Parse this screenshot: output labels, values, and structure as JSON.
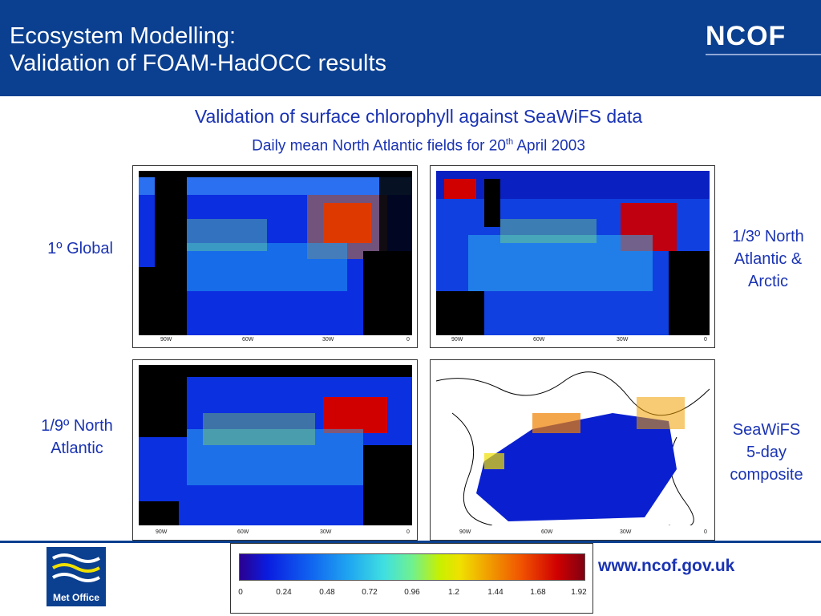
{
  "header": {
    "title_line1": "Ecosystem Modelling:",
    "title_line2": "Validation of FOAM-HadOCC results",
    "logo": "NCOF"
  },
  "subtitle": {
    "main": "Validation of surface chlorophyll against SeaWiFS data",
    "date_prefix": "Daily mean North Atlantic fields for 20",
    "date_sup": "th",
    "date_suffix": " April 2003"
  },
  "panels": [
    {
      "label": "1º Global",
      "ticks": [
        "90W",
        "60W",
        "30W",
        "0"
      ]
    },
    {
      "label": "1/3º North Atlantic & Arctic",
      "ticks": [
        "90W",
        "60W",
        "30W",
        "0"
      ]
    },
    {
      "label": "1/9º North Atlantic",
      "ticks": [
        "90W",
        "60W",
        "30W",
        "0"
      ]
    },
    {
      "label": "SeaWiFS 5-day composite",
      "ticks": [
        "90W",
        "60W",
        "30W",
        "0"
      ]
    }
  ],
  "labels": {
    "global": "1º Global",
    "na_arctic_l1": "1/3º North",
    "na_arctic_l2": "Atlantic &",
    "na_arctic_l3": "Arctic",
    "na9_l1": "1/9º North",
    "na9_l2": "Atlantic",
    "seawifs_l1": "SeaWiFS",
    "seawifs_l2": "5-day",
    "seawifs_l3": "composite"
  },
  "colorbar": {
    "ticks": [
      "0",
      "0.24",
      "0.48",
      "0.72",
      "0.96",
      "1.2",
      "1.44",
      "1.68",
      "1.92"
    ]
  },
  "footer": {
    "metoffice": "Met Office",
    "url": "www.ncof.gov.uk"
  },
  "colors": {
    "header_bg": "#0b3f8f",
    "accent_text": "#1a33b3"
  }
}
